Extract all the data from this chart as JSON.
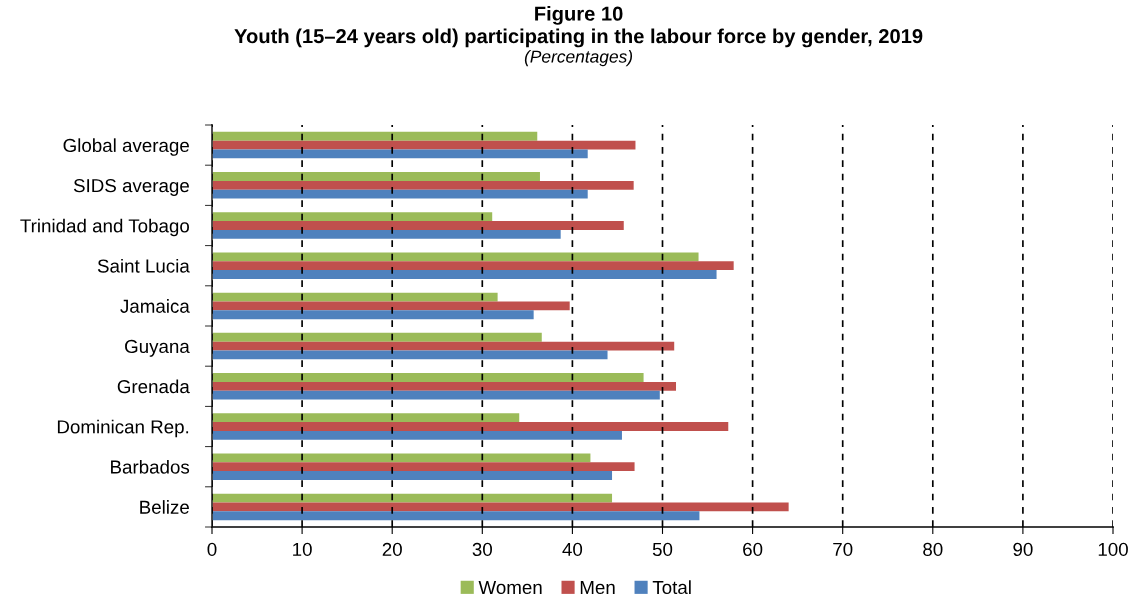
{
  "chart_data": {
    "type": "bar",
    "orientation": "horizontal",
    "title": "Figure 10\nYouth (15–24 years old) participating in the labour force by gender, 2019",
    "subtitle": "(Percentages)",
    "categories": [
      "Global average",
      "SIDS average",
      "Trinidad and Tobago",
      "Saint Lucia",
      "Jamaica",
      "Guyana",
      "Grenada",
      "Dominican Rep.",
      "Barbados",
      "Belize"
    ],
    "series": [
      {
        "name": "Women",
        "color": "#9bbb59",
        "values": [
          36.1,
          36.4,
          31.1,
          54.0,
          31.7,
          36.6,
          47.9,
          34.1,
          42.0,
          44.4
        ]
      },
      {
        "name": "Men",
        "color": "#c0504d",
        "values": [
          47.0,
          46.8,
          45.7,
          57.9,
          39.7,
          51.3,
          51.5,
          57.3,
          46.9,
          64.0
        ]
      },
      {
        "name": "Total",
        "color": "#4f81bd",
        "values": [
          41.7,
          41.7,
          38.7,
          56.0,
          35.7,
          43.9,
          49.7,
          45.5,
          44.4,
          54.1
        ]
      }
    ],
    "xlim": [
      0,
      100
    ],
    "xticks": [
      0,
      10,
      20,
      30,
      40,
      50,
      60,
      70,
      80,
      90,
      100
    ],
    "grid": "x",
    "legend": "bottom"
  }
}
